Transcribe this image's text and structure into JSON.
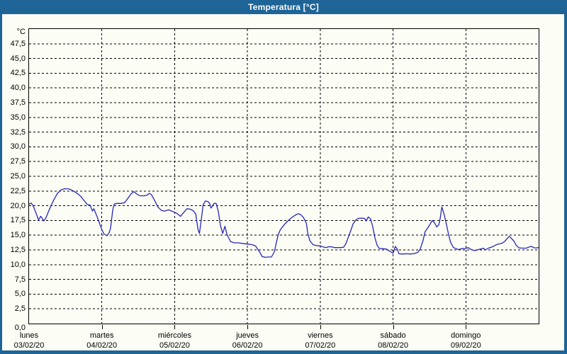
{
  "window": {
    "title": "Temperatura [°C]",
    "colors": {
      "titlebar": "#1e6496",
      "border": "#1e6496",
      "background": "#fcfdf5",
      "plot_border": "#000000",
      "grid": "#000000",
      "text": "#000000",
      "line": "#2626bb"
    }
  },
  "chart_data": {
    "type": "line",
    "title": "Temperatura [°C]",
    "ylabel": "°C",
    "ylim": [
      0,
      50
    ],
    "ytick_step": 2.5,
    "ytick_labels": [
      "47,5",
      "45,0",
      "42,5",
      "40,0",
      "37,5",
      "35,0",
      "32,5",
      "30,0",
      "27,5",
      "25,0",
      "22,5",
      "20,0",
      "17,5",
      "15,0",
      "12,5",
      "10,0",
      "7,5",
      "5,0",
      "2,5",
      "0,0"
    ],
    "grid": "dashed",
    "legend": "none",
    "x_days_total": 7,
    "days": [
      {
        "name": "lunes",
        "date": "03/02/20"
      },
      {
        "name": "martes",
        "date": "04/02/20"
      },
      {
        "name": "miércoles",
        "date": "05/02/20"
      },
      {
        "name": "jueves",
        "date": "06/02/20"
      },
      {
        "name": "viernes",
        "date": "07/02/20"
      },
      {
        "name": "sábado",
        "date": "08/02/20"
      },
      {
        "name": "domingo",
        "date": "09/02/20"
      }
    ],
    "series": [
      {
        "name": "Temperatura",
        "unit": "°C",
        "color": "#2626bb",
        "points": [
          [
            0.0,
            20.3
          ],
          [
            0.03,
            20.45
          ],
          [
            0.06,
            19.9
          ],
          [
            0.1,
            18.6
          ],
          [
            0.13,
            17.6
          ],
          [
            0.16,
            18.2
          ],
          [
            0.18,
            17.9
          ],
          [
            0.2,
            17.4
          ],
          [
            0.23,
            17.9
          ],
          [
            0.29,
            19.7
          ],
          [
            0.34,
            21.0
          ],
          [
            0.39,
            22.1
          ],
          [
            0.44,
            22.7
          ],
          [
            0.49,
            22.9
          ],
          [
            0.55,
            22.85
          ],
          [
            0.61,
            22.5
          ],
          [
            0.66,
            22.1
          ],
          [
            0.71,
            21.6
          ],
          [
            0.76,
            20.8
          ],
          [
            0.8,
            20.2
          ],
          [
            0.84,
            20.1
          ],
          [
            0.87,
            19.1
          ],
          [
            0.89,
            19.5
          ],
          [
            0.93,
            18.3
          ],
          [
            0.96,
            17.3
          ],
          [
            1.0,
            15.9
          ],
          [
            1.03,
            15.2
          ],
          [
            1.07,
            14.9
          ],
          [
            1.1,
            15.4
          ],
          [
            1.12,
            16.2
          ],
          [
            1.15,
            19.3
          ],
          [
            1.17,
            20.3
          ],
          [
            1.21,
            20.4
          ],
          [
            1.26,
            20.4
          ],
          [
            1.31,
            20.5
          ],
          [
            1.36,
            21.3
          ],
          [
            1.4,
            22.0
          ],
          [
            1.44,
            22.4
          ],
          [
            1.48,
            22.0
          ],
          [
            1.52,
            21.7
          ],
          [
            1.58,
            21.7
          ],
          [
            1.62,
            21.8
          ],
          [
            1.65,
            22.1
          ],
          [
            1.68,
            21.9
          ],
          [
            1.72,
            21.0
          ],
          [
            1.77,
            19.8
          ],
          [
            1.82,
            19.2
          ],
          [
            1.86,
            19.1
          ],
          [
            1.92,
            19.3
          ],
          [
            1.96,
            19.1
          ],
          [
            2.0,
            18.9
          ],
          [
            2.03,
            18.7
          ],
          [
            2.06,
            18.4
          ],
          [
            2.08,
            18.2
          ],
          [
            2.12,
            18.8
          ],
          [
            2.17,
            19.5
          ],
          [
            2.22,
            19.4
          ],
          [
            2.26,
            19.1
          ],
          [
            2.29,
            18.6
          ],
          [
            2.32,
            16.0
          ],
          [
            2.34,
            15.3
          ],
          [
            2.37,
            18.0
          ],
          [
            2.39,
            20.1
          ],
          [
            2.42,
            20.8
          ],
          [
            2.46,
            20.7
          ],
          [
            2.48,
            20.4
          ],
          [
            2.5,
            19.6
          ],
          [
            2.54,
            20.4
          ],
          [
            2.57,
            20.4
          ],
          [
            2.6,
            19.0
          ],
          [
            2.63,
            16.6
          ],
          [
            2.66,
            15.3
          ],
          [
            2.69,
            16.5
          ],
          [
            2.72,
            15.1
          ],
          [
            2.74,
            14.6
          ],
          [
            2.77,
            13.9
          ],
          [
            2.82,
            13.7
          ],
          [
            2.88,
            13.7
          ],
          [
            2.93,
            13.6
          ],
          [
            3.0,
            13.5
          ],
          [
            3.06,
            13.4
          ],
          [
            3.11,
            13.2
          ],
          [
            3.17,
            12.1
          ],
          [
            3.2,
            11.4
          ],
          [
            3.24,
            11.25
          ],
          [
            3.29,
            11.3
          ],
          [
            3.33,
            11.3
          ],
          [
            3.37,
            12.2
          ],
          [
            3.42,
            15.0
          ],
          [
            3.45,
            15.9
          ],
          [
            3.48,
            16.4
          ],
          [
            3.52,
            17.0
          ],
          [
            3.57,
            17.6
          ],
          [
            3.62,
            18.1
          ],
          [
            3.67,
            18.5
          ],
          [
            3.7,
            18.65
          ],
          [
            3.73,
            18.5
          ],
          [
            3.77,
            18.0
          ],
          [
            3.81,
            17.0
          ],
          [
            3.83,
            15.2
          ],
          [
            3.86,
            14.0
          ],
          [
            3.9,
            13.4
          ],
          [
            3.94,
            13.25
          ],
          [
            4.0,
            13.2
          ],
          [
            4.04,
            13.0
          ],
          [
            4.08,
            12.9
          ],
          [
            4.12,
            13.05
          ],
          [
            4.16,
            13.0
          ],
          [
            4.2,
            12.9
          ],
          [
            4.27,
            12.9
          ],
          [
            4.32,
            12.95
          ],
          [
            4.35,
            13.5
          ],
          [
            4.4,
            15.1
          ],
          [
            4.45,
            16.9
          ],
          [
            4.49,
            17.6
          ],
          [
            4.52,
            17.85
          ],
          [
            4.57,
            17.9
          ],
          [
            4.61,
            17.85
          ],
          [
            4.63,
            17.4
          ],
          [
            4.66,
            18.1
          ],
          [
            4.69,
            17.8
          ],
          [
            4.72,
            16.5
          ],
          [
            4.75,
            14.6
          ],
          [
            4.78,
            13.3
          ],
          [
            4.81,
            12.75
          ],
          [
            4.86,
            12.7
          ],
          [
            4.91,
            12.65
          ],
          [
            4.95,
            12.3
          ],
          [
            5.0,
            11.95
          ],
          [
            5.03,
            13.1
          ],
          [
            5.06,
            12.6
          ],
          [
            5.08,
            11.85
          ],
          [
            5.13,
            11.8
          ],
          [
            5.19,
            11.85
          ],
          [
            5.24,
            11.8
          ],
          [
            5.3,
            11.9
          ],
          [
            5.34,
            12.1
          ],
          [
            5.37,
            12.55
          ],
          [
            5.41,
            14.0
          ],
          [
            5.44,
            15.6
          ],
          [
            5.47,
            16.1
          ],
          [
            5.5,
            16.7
          ],
          [
            5.54,
            17.5
          ],
          [
            5.57,
            17.1
          ],
          [
            5.6,
            16.4
          ],
          [
            5.63,
            16.8
          ],
          [
            5.65,
            18.0
          ],
          [
            5.67,
            19.8
          ],
          [
            5.7,
            18.6
          ],
          [
            5.73,
            17.0
          ],
          [
            5.76,
            15.3
          ],
          [
            5.79,
            13.8
          ],
          [
            5.83,
            12.9
          ],
          [
            5.87,
            12.7
          ],
          [
            5.9,
            12.55
          ],
          [
            5.94,
            12.7
          ],
          [
            6.0,
            12.75
          ],
          [
            6.03,
            12.9
          ],
          [
            6.07,
            12.6
          ],
          [
            6.11,
            12.4
          ],
          [
            6.15,
            12.45
          ],
          [
            6.18,
            12.6
          ],
          [
            6.22,
            12.7
          ],
          [
            6.24,
            12.8
          ],
          [
            6.27,
            12.5
          ],
          [
            6.31,
            12.8
          ],
          [
            6.36,
            13.0
          ],
          [
            6.43,
            13.45
          ],
          [
            6.49,
            13.6
          ],
          [
            6.53,
            13.9
          ],
          [
            6.58,
            14.6
          ],
          [
            6.6,
            14.8
          ],
          [
            6.63,
            14.4
          ],
          [
            6.66,
            14.0
          ],
          [
            6.69,
            13.3
          ],
          [
            6.73,
            12.85
          ],
          [
            6.78,
            12.8
          ],
          [
            6.83,
            12.8
          ],
          [
            6.87,
            13.0
          ],
          [
            6.9,
            13.1
          ],
          [
            6.94,
            12.85
          ],
          [
            6.97,
            12.85
          ],
          [
            7.0,
            12.9
          ]
        ]
      }
    ]
  }
}
